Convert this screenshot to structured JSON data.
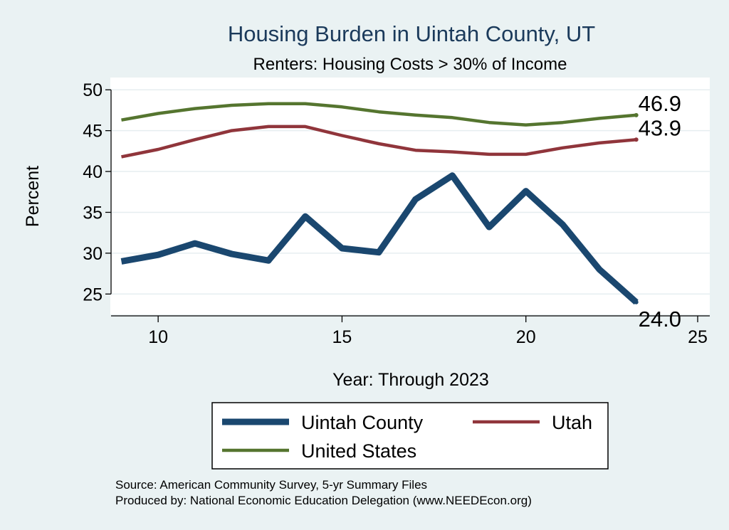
{
  "chart_data": {
    "type": "line",
    "title": "Housing Burden in Uintah County, UT",
    "subtitle": "Renters: Housing Costs > 30% of Income",
    "xlabel": "Year: Through 2023",
    "ylabel": "Percent",
    "xlim": [
      8.7,
      25
    ],
    "ylim": [
      22.5,
      51.5
    ],
    "xticks": [
      10,
      15,
      20,
      25
    ],
    "yticks": [
      25,
      30,
      35,
      40,
      45,
      50
    ],
    "grid": true,
    "legend_position": "bottom",
    "series": [
      {
        "name": "Uintah County",
        "color": "#1a476f",
        "x": [
          9,
          10,
          11,
          12,
          13,
          14,
          15,
          16,
          17,
          18,
          19,
          20,
          21,
          22,
          23
        ],
        "values": [
          29.0,
          29.8,
          31.2,
          29.9,
          29.1,
          34.5,
          30.6,
          30.1,
          36.6,
          39.5,
          33.2,
          37.6,
          33.5,
          28.0,
          24.0
        ],
        "end_label": "24.0"
      },
      {
        "name": "Utah",
        "color": "#90353b",
        "x": [
          9,
          10,
          11,
          12,
          13,
          14,
          15,
          16,
          17,
          18,
          19,
          20,
          21,
          22,
          23
        ],
        "values": [
          41.8,
          42.7,
          43.9,
          45.0,
          45.5,
          45.5,
          44.4,
          43.4,
          42.6,
          42.4,
          42.1,
          42.1,
          42.9,
          43.5,
          43.9
        ],
        "end_label": "43.9"
      },
      {
        "name": "United States",
        "color": "#55752f",
        "x": [
          9,
          10,
          11,
          12,
          13,
          14,
          15,
          16,
          17,
          18,
          19,
          20,
          21,
          22,
          23
        ],
        "values": [
          46.3,
          47.1,
          47.7,
          48.1,
          48.3,
          48.3,
          47.9,
          47.3,
          46.9,
          46.6,
          46.0,
          45.7,
          46.0,
          46.5,
          46.9
        ],
        "end_label": "46.9"
      }
    ],
    "legend": [
      "Uintah County",
      "Utah",
      "United States"
    ],
    "notes": [
      "Source: American Community Survey, 5-yr Summary Files",
      "Produced by: National Economic Education Delegation (www.NEEDEcon.org)"
    ]
  }
}
